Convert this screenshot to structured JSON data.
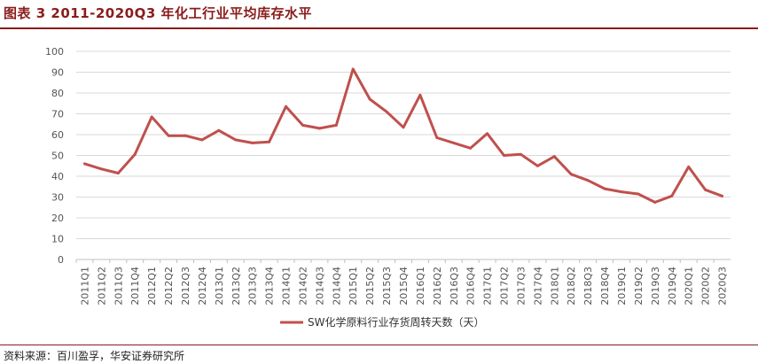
{
  "header": {
    "title": "图表 3 2011-2020Q3 年化工行业平均库存水平"
  },
  "footer": {
    "source": "资料来源：百川盈孚，华安证券研究所"
  },
  "chart_data": {
    "type": "line",
    "categories": [
      "2011Q1",
      "2011Q2",
      "2011Q3",
      "2011Q4",
      "2012Q1",
      "2012Q2",
      "2012Q3",
      "2012Q4",
      "2013Q1",
      "2013Q2",
      "2013Q3",
      "2013Q4",
      "2014Q1",
      "2014Q2",
      "2014Q3",
      "2014Q4",
      "2015Q1",
      "2015Q2",
      "2015Q3",
      "2015Q4",
      "2016Q1",
      "2016Q2",
      "2016Q3",
      "2016Q4",
      "2017Q1",
      "2017Q2",
      "2017Q3",
      "2017Q4",
      "2018Q1",
      "2018Q2",
      "2018Q3",
      "2018Q4",
      "2019Q1",
      "2019Q2",
      "2019Q3",
      "2019Q4",
      "2020Q1",
      "2020Q2",
      "2020Q3"
    ],
    "series": [
      {
        "name": "SW化学原料行业存货周转天数（天）",
        "values": [
          46,
          43.5,
          41.5,
          50.5,
          68.5,
          59.5,
          59.5,
          57.5,
          62,
          57.5,
          56,
          56.5,
          73.5,
          64.5,
          63,
          64.5,
          91.5,
          77,
          71,
          63.5,
          79,
          58.5,
          56,
          53.5,
          60.5,
          50,
          50.5,
          45,
          49.5,
          41,
          38,
          34,
          32.5,
          31.5,
          27.5,
          30.5,
          44.5,
          33.5,
          30.5
        ]
      }
    ],
    "ylim": [
      0,
      100
    ],
    "yticks": [
      0,
      10,
      20,
      30,
      40,
      50,
      60,
      70,
      80,
      90,
      100
    ],
    "grid": true,
    "legend": "bottom-center",
    "colors": {
      "line": "#c0504d",
      "grid": "#d9d9d9"
    }
  }
}
